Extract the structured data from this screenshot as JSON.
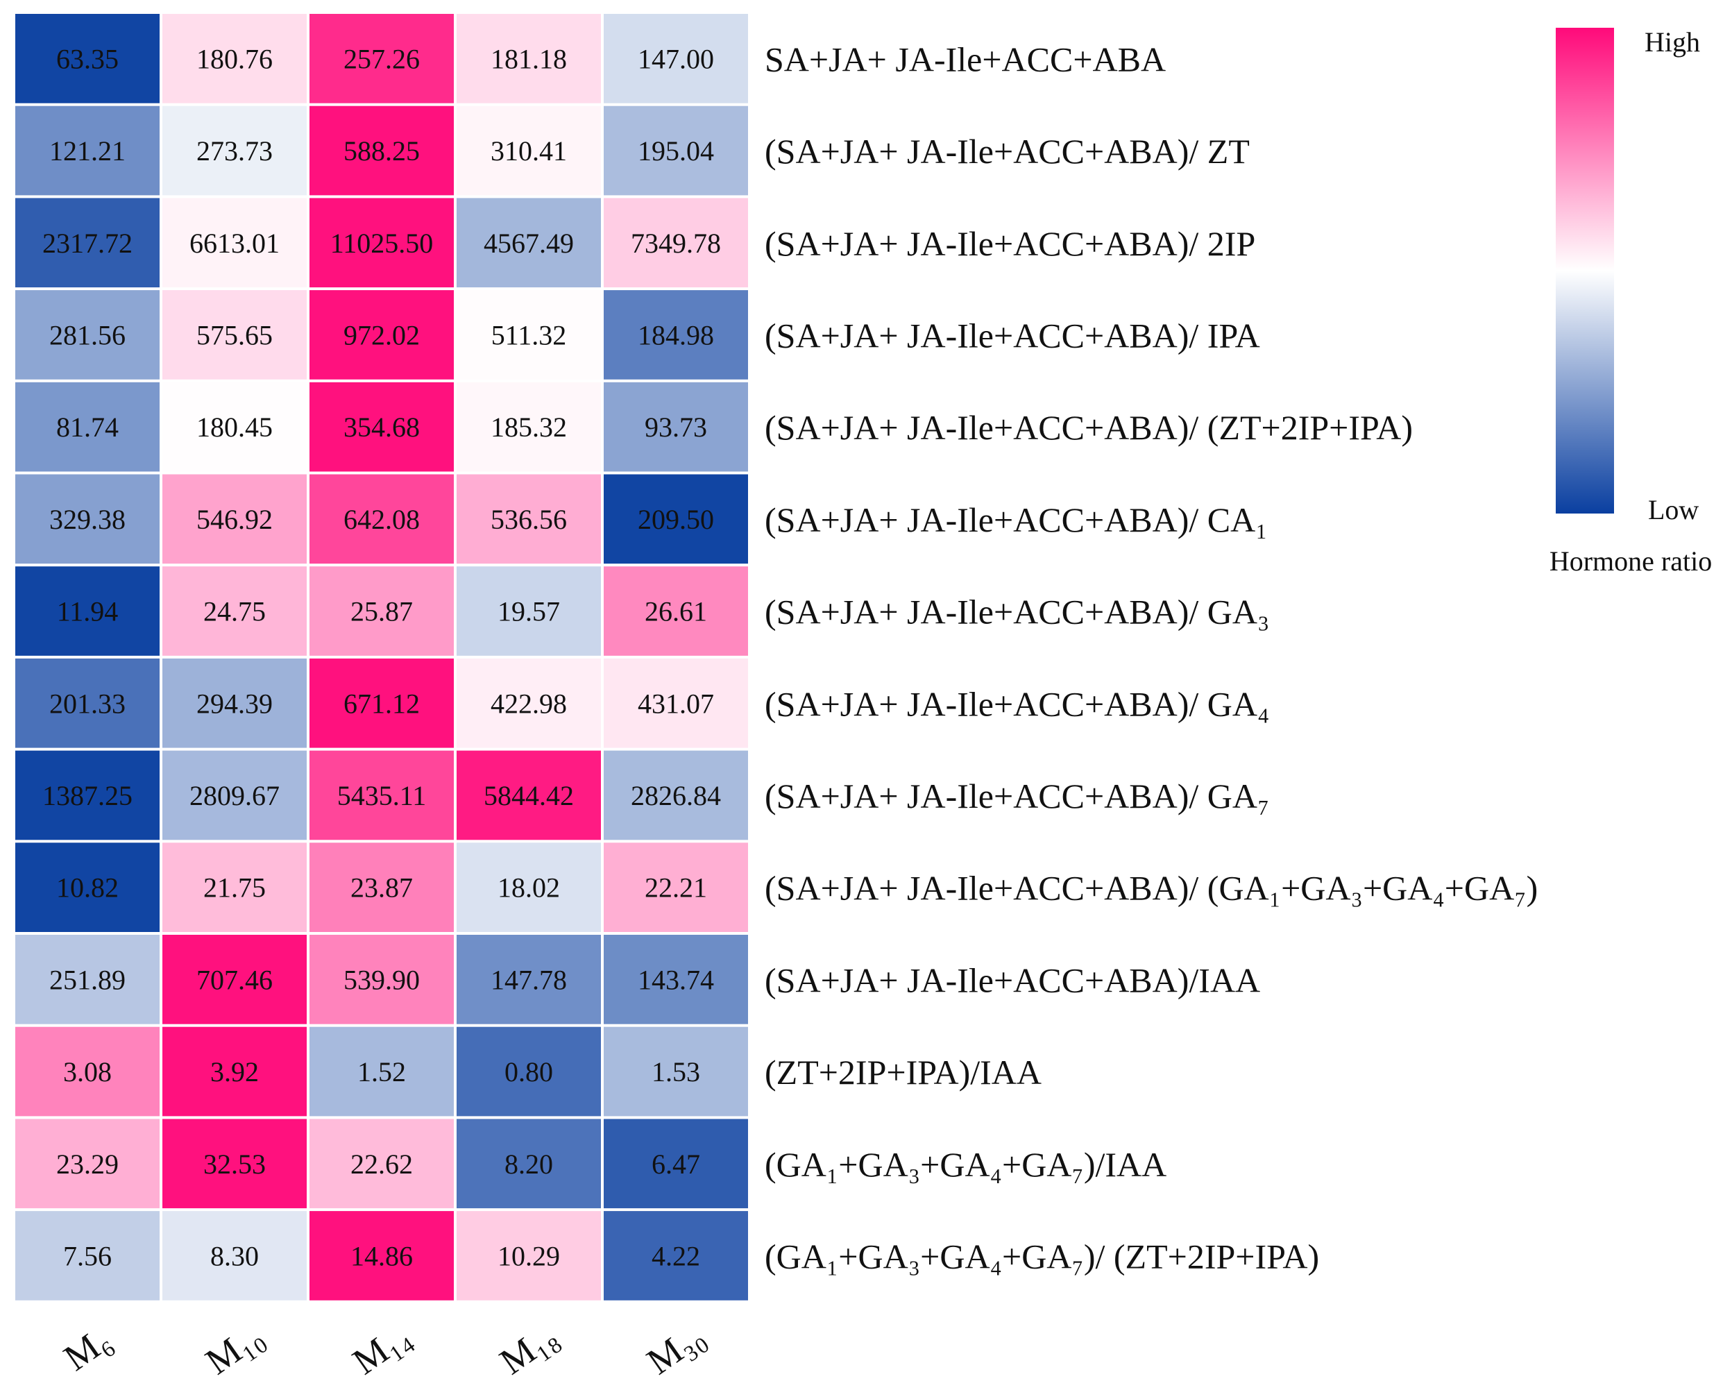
{
  "chart_data": {
    "type": "heatmap",
    "title": "",
    "columns": [
      "M₆",
      "M₁₀",
      "M₁₄",
      "M₁₈",
      "M₃₀"
    ],
    "rows": [
      {
        "label": "SA+JA+ JA-Ile+ACC+ABA",
        "values": [
          "63.35",
          "180.76",
          "257.26",
          "181.18",
          "147.00"
        ]
      },
      {
        "label": "(SA+JA+ JA-Ile+ACC+ABA)/ ZT",
        "values": [
          "121.21",
          "273.73",
          "588.25",
          "310.41",
          "195.04"
        ]
      },
      {
        "label": "(SA+JA+ JA-Ile+ACC+ABA)/ 2IP",
        "values": [
          "2317.72",
          "6613.01",
          "11025.50",
          "4567.49",
          "7349.78"
        ]
      },
      {
        "label": "(SA+JA+ JA-Ile+ACC+ABA)/ IPA",
        "values": [
          "281.56",
          "575.65",
          "972.02",
          "511.32",
          "184.98"
        ]
      },
      {
        "label": "(SA+JA+ JA-Ile+ACC+ABA)/ (ZT+2IP+IPA)",
        "values": [
          "81.74",
          "180.45",
          "354.68",
          "185.32",
          "93.73"
        ]
      },
      {
        "label": "(SA+JA+ JA-Ile+ACC+ABA)/ CA₁",
        "values": [
          "329.38",
          "546.92",
          "642.08",
          "536.56",
          "209.50"
        ]
      },
      {
        "label": "(SA+JA+ JA-Ile+ACC+ABA)/ GA₃",
        "values": [
          "11.94",
          "24.75",
          "25.87",
          "19.57",
          "26.61"
        ]
      },
      {
        "label": "(SA+JA+ JA-Ile+ACC+ABA)/ GA₄",
        "values": [
          "201.33",
          "294.39",
          "671.12",
          "422.98",
          "431.07"
        ]
      },
      {
        "label": "(SA+JA+ JA-Ile+ACC+ABA)/ GA₇",
        "values": [
          "1387.25",
          "2809.67",
          "5435.11",
          "5844.42",
          "2826.84"
        ]
      },
      {
        "label": "(SA+JA+ JA-Ile+ACC+ABA)/ (GA₁+GA₃+GA₄+GA₇)",
        "values": [
          "10.82",
          "21.75",
          "23.87",
          "18.02",
          "22.21"
        ]
      },
      {
        "label": "(SA+JA+ JA-Ile+ACC+ABA)/IAA",
        "values": [
          "251.89",
          "707.46",
          "539.90",
          "147.78",
          "143.74"
        ]
      },
      {
        "label": "(ZT+2IP+IPA)/IAA",
        "values": [
          "3.08",
          "3.92",
          "1.52",
          "0.80",
          "1.53"
        ]
      },
      {
        "label": "(GA₁+GA₃+GA₄+GA₇)/IAA",
        "values": [
          "23.29",
          "32.53",
          "22.62",
          "8.20",
          "6.47"
        ]
      },
      {
        "label": "(GA₁+GA₃+GA₄+GA₇)/ (ZT+2IP+IPA)",
        "values": [
          "7.56",
          "8.30",
          "14.86",
          "10.29",
          "4.22"
        ]
      }
    ],
    "legend": {
      "title": "Hormone ratio",
      "high_label": "High",
      "low_label": "Low",
      "high_color": "#ff0a7a",
      "mid_color": "#ffffff",
      "low_color": "#0a3fa0",
      "placement": "top-right"
    }
  }
}
